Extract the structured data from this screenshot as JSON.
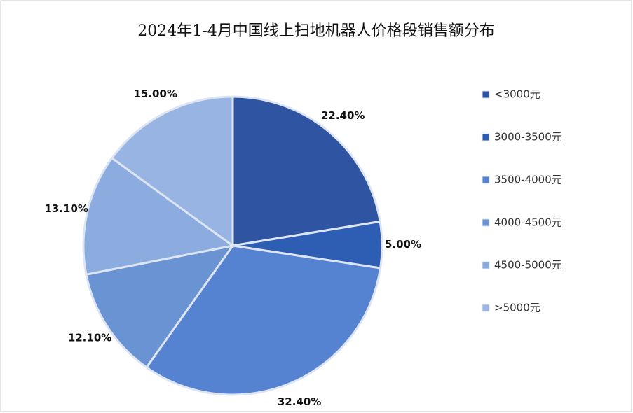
{
  "chart_data": {
    "type": "pie",
    "title": "2024年1-4月中国线上扫地机器人价格段销售额分布",
    "categories": [
      "<3000元",
      "3000-3500元",
      "3500-4000元",
      "4000-4500元",
      "4500-5000元",
      ">5000元"
    ],
    "values": [
      22.4,
      5.0,
      32.4,
      12.1,
      13.1,
      15.0
    ],
    "value_labels": [
      "22.40%",
      "5.00%",
      "32.40%",
      "12.10%",
      "13.10%",
      "15.00%"
    ],
    "colors": [
      "#2f54a2",
      "#2e5db4",
      "#5683d1",
      "#6993d2",
      "#8cabdf",
      "#97b4e2"
    ],
    "legend": "right"
  }
}
